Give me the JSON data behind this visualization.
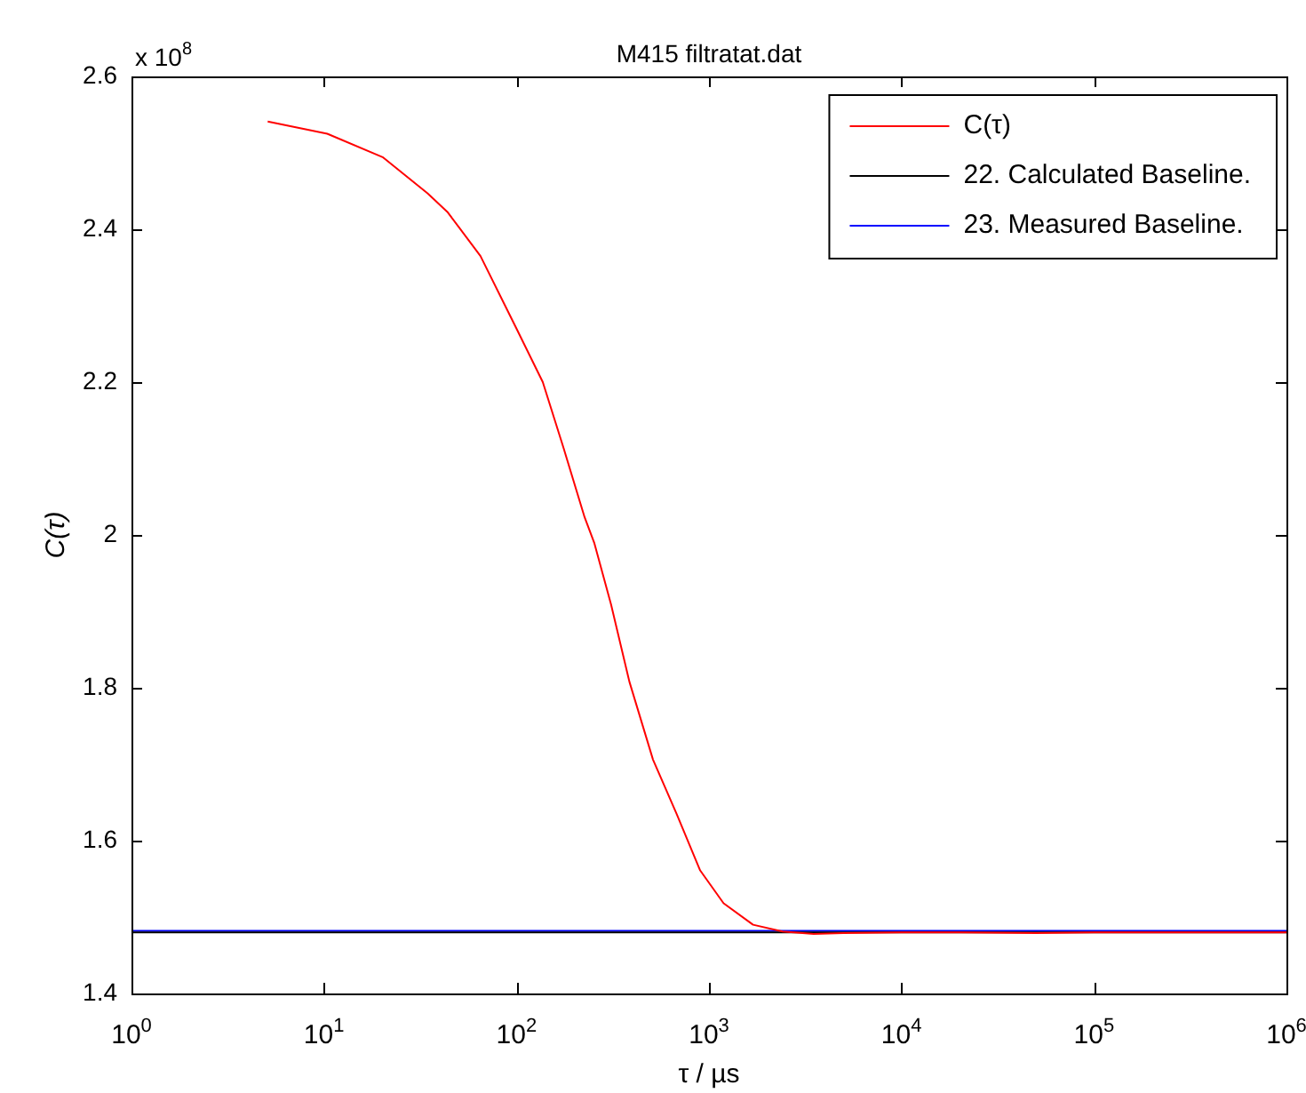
{
  "chart_data": {
    "type": "line",
    "title": "M415 filtratat.dat",
    "xlabel": "τ / µs",
    "ylabel": "C(τ)",
    "annotations": [
      "x 10$^{8}$"
    ],
    "log": "x",
    "xlim": [
      1,
      1000000
    ],
    "xticks": [
      {
        "value": 1,
        "label": "10$^{0}$"
      },
      {
        "value": 10,
        "label": "10$^{1}$"
      },
      {
        "value": 100,
        "label": "10$^{2}$"
      },
      {
        "value": 1000,
        "label": "10$^{3}$"
      },
      {
        "value": 10000,
        "label": "10$^{4}$"
      },
      {
        "value": 100000,
        "label": "10$^{5}$"
      },
      {
        "value": 1000000,
        "label": "10$^{6}$"
      }
    ],
    "ylim": [
      1.4,
      2.6
    ],
    "yticks": [
      1.4,
      1.6,
      1.8,
      2,
      2.2,
      2.4,
      2.6
    ],
    "grid": false,
    "legend": "top right",
    "marker": "none",
    "line_style": "solid",
    "series": [
      {
        "name": "C(τ)",
        "color": "#ff0000",
        "x": [
          5.1,
          10.4,
          20.3,
          34.5,
          44,
          65,
          100,
          137,
          176,
          226,
          254,
          310,
          386,
          512,
          679,
          900,
          1191,
          1694,
          2410,
          3500,
          5000,
          10000,
          20000,
          50000,
          100000,
          300000,
          1000000
        ],
        "values": [
          2.541,
          2.525,
          2.494,
          2.447,
          2.422,
          2.365,
          2.27,
          2.2,
          2.113,
          2.023,
          1.989,
          1.909,
          1.808,
          1.706,
          1.635,
          1.561,
          1.518,
          1.49,
          1.481,
          1.478,
          1.479,
          1.48,
          1.48,
          1.479,
          1.48,
          1.48,
          1.48
        ]
      },
      {
        "name": "22. Calculated Baseline.",
        "color": "#000000",
        "x": [
          1,
          1000000
        ],
        "values": [
          1.48,
          1.48
        ]
      },
      {
        "name": "23. Measured Baseline.",
        "color": "#0000ff",
        "x": [
          1,
          1000000
        ],
        "values": [
          1.482,
          1.482
        ]
      }
    ]
  }
}
